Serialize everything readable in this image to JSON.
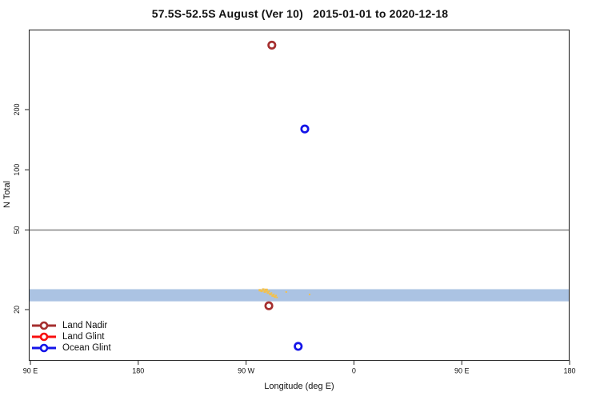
{
  "chart_data": {
    "type": "scatter",
    "title": "57.5S-52.5S August (Ver 10)   2015-01-01 to 2020-12-18",
    "xlabel": "Longitude (deg E)",
    "ylabel": "N Total",
    "x_axis": {
      "tick_lons": [
        90,
        180,
        270,
        360,
        450,
        540
      ],
      "tick_labels": [
        "90 E",
        "180",
        "90 W",
        "0",
        "90 E",
        "180"
      ],
      "range": [
        90,
        540
      ]
    },
    "y_axis": {
      "scale": "log",
      "ticks": [
        20,
        50,
        100,
        200
      ],
      "tick_labels": [
        "20",
        "50",
        "100",
        "200"
      ],
      "range": [
        11,
        500
      ]
    },
    "reference_line": {
      "y": 50,
      "color": "#7a7a7a"
    },
    "band": {
      "n_min": 22,
      "n_max": 25.3,
      "lon_min": 90,
      "lon_max": 540,
      "color": "#abc3e3"
    },
    "series": [
      {
        "name": "Land Nadir",
        "color": "#a52f2f",
        "points": [
          {
            "lon": 291.5,
            "n": 420
          },
          {
            "lon": 289.0,
            "n": 20.9
          }
        ]
      },
      {
        "name": "Land Glint",
        "color": "#f80f0f",
        "points": []
      },
      {
        "name": "Ocean Glint",
        "color": "#1414e8",
        "points": [
          {
            "lon": 319.0,
            "n": 160
          },
          {
            "lon": 313.5,
            "n": 13.1
          }
        ]
      }
    ],
    "small_marks": {
      "color": "#f2c14e",
      "points": [
        [
          281.5,
          25.0,
          3
        ],
        [
          283.0,
          24.8,
          3
        ],
        [
          284.3,
          25.2,
          3
        ],
        [
          285.6,
          24.6,
          3
        ],
        [
          286.8,
          25.0,
          4
        ],
        [
          288.2,
          24.3,
          3
        ],
        [
          289.2,
          24.7,
          2
        ],
        [
          290.2,
          23.9,
          3
        ],
        [
          291.2,
          24.2,
          2
        ],
        [
          292.2,
          23.5,
          3
        ],
        [
          293.2,
          23.8,
          2
        ],
        [
          294.0,
          23.2,
          3
        ],
        [
          295.0,
          23.5,
          2
        ],
        [
          295.8,
          23.0,
          2
        ],
        [
          303.5,
          24.5,
          2
        ],
        [
          323.0,
          23.8,
          2
        ]
      ]
    },
    "legend_position": "bottom-left"
  }
}
